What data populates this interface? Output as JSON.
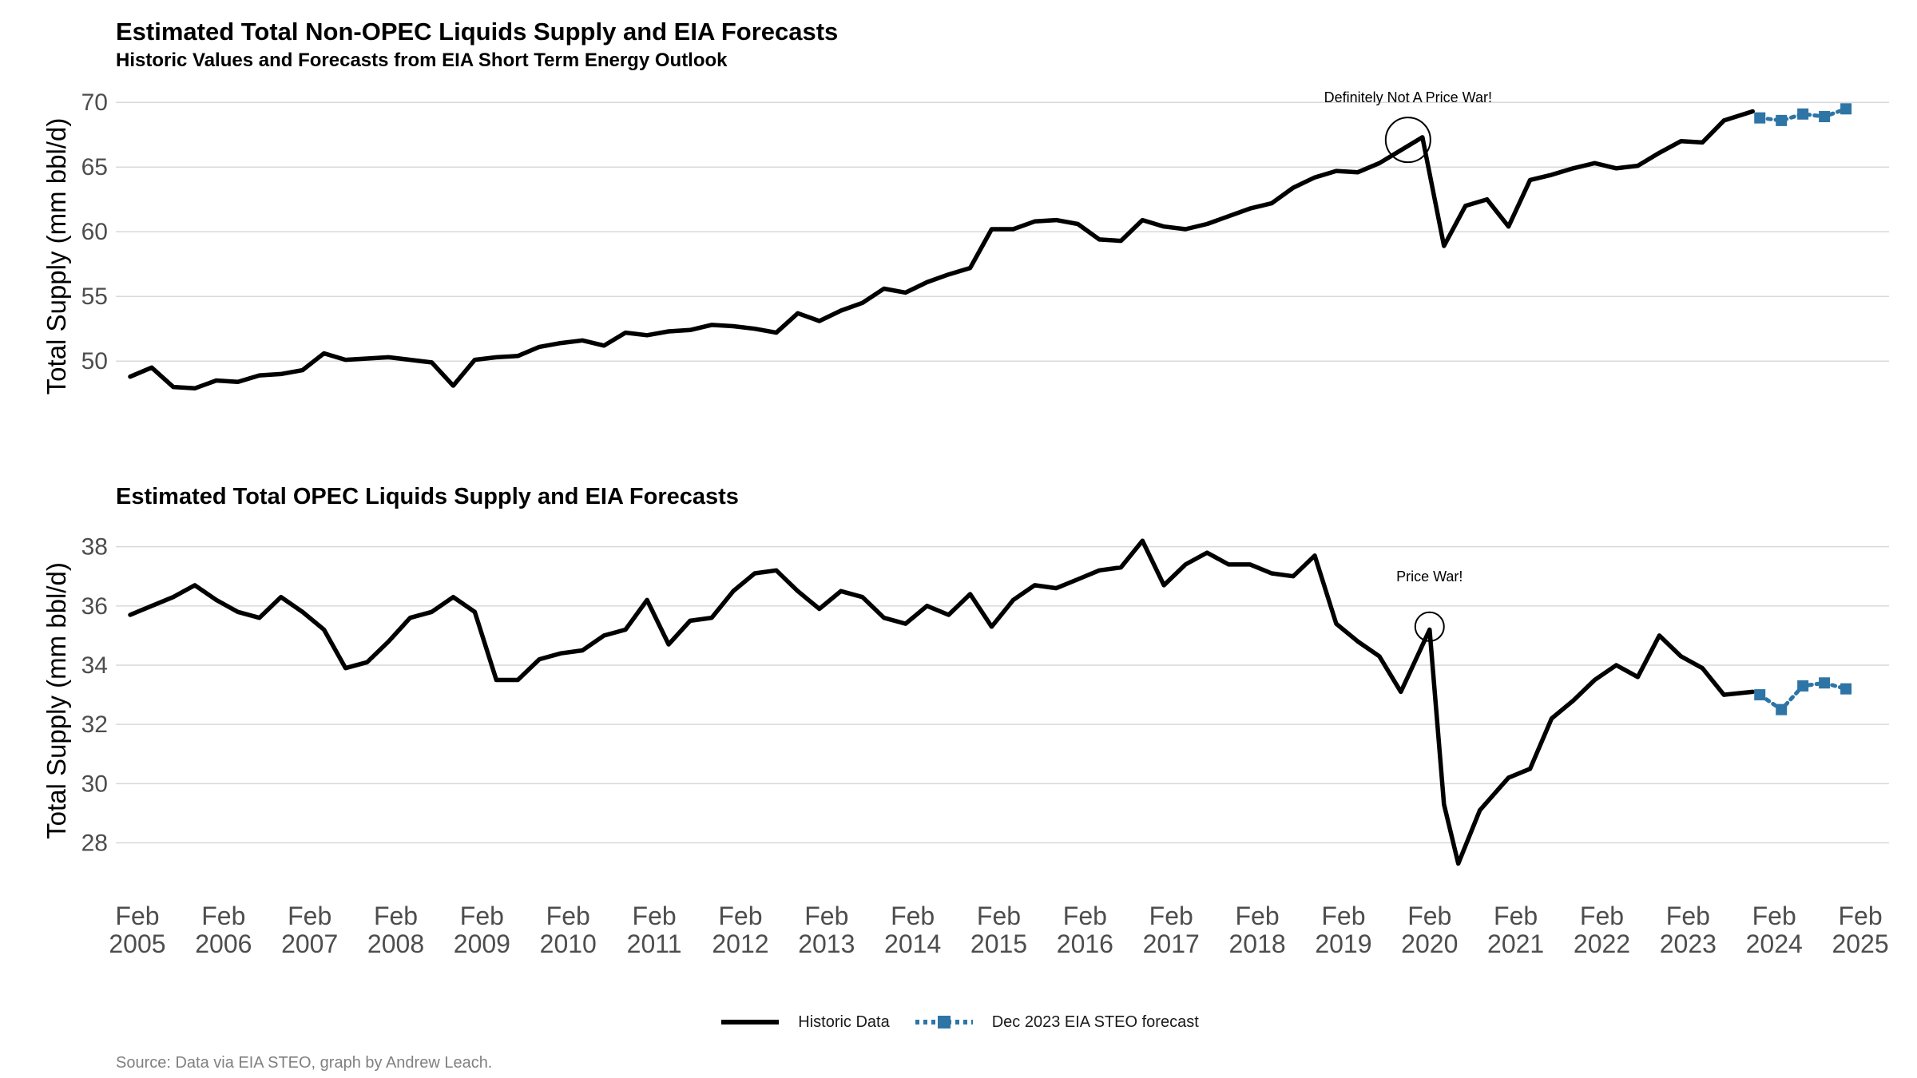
{
  "titles": {
    "top_title": "Estimated Total Non-OPEC Liquids Supply and EIA Forecasts",
    "top_subtitle": "Historic Values and Forecasts from EIA Short Term Energy Outlook",
    "bottom_title": "Estimated Total OPEC Liquids Supply and EIA Forecasts"
  },
  "legend": {
    "historic_label": "Historic Data",
    "forecast_label": "Dec 2023 EIA STEO forecast"
  },
  "caption": "Source: Data via EIA STEO, graph by Andrew Leach.",
  "colors": {
    "historic": "#000000",
    "forecast": "#2e75a6",
    "grid": "#d9d9d9"
  },
  "chart_data": [
    {
      "type": "line",
      "title": "Estimated Total Non-OPEC Liquids Supply and EIA Forecasts",
      "subtitle": "Historic Values and Forecasts from EIA Short Term Energy Outlook",
      "xlabel": "",
      "ylabel": "Total Supply (mm bbl/d)",
      "xlim": [
        "2004-11",
        "2025-06"
      ],
      "ylim": [
        45.2,
        71
      ],
      "yticks": [
        50,
        55,
        60,
        65,
        70
      ],
      "grid": true,
      "legend_position": "bottom",
      "annotation": {
        "text": "Definitely Not A Price War!",
        "x": "2019-11",
        "y": 67.1
      },
      "series": [
        {
          "name": "Historic Data",
          "style": "solid",
          "x": [
            "2005-01",
            "2005-04",
            "2005-07",
            "2005-10",
            "2006-01",
            "2006-04",
            "2006-07",
            "2006-10",
            "2007-01",
            "2007-04",
            "2007-07",
            "2007-10",
            "2008-01",
            "2008-04",
            "2008-07",
            "2008-10",
            "2009-01",
            "2009-04",
            "2009-07",
            "2009-10",
            "2010-01",
            "2010-04",
            "2010-07",
            "2010-10",
            "2011-01",
            "2011-04",
            "2011-07",
            "2011-10",
            "2012-01",
            "2012-04",
            "2012-07",
            "2012-10",
            "2013-01",
            "2013-04",
            "2013-07",
            "2013-10",
            "2014-01",
            "2014-04",
            "2014-07",
            "2014-10",
            "2015-01",
            "2015-04",
            "2015-07",
            "2015-10",
            "2016-01",
            "2016-04",
            "2016-07",
            "2016-10",
            "2017-01",
            "2017-04",
            "2017-07",
            "2017-10",
            "2018-01",
            "2018-04",
            "2018-07",
            "2018-10",
            "2019-01",
            "2019-04",
            "2019-07",
            "2019-10",
            "2020-01",
            "2020-04",
            "2020-07",
            "2020-10",
            "2021-01",
            "2021-04",
            "2021-07",
            "2021-10",
            "2022-01",
            "2022-04",
            "2022-07",
            "2022-10",
            "2023-01",
            "2023-04",
            "2023-07",
            "2023-11"
          ],
          "y": [
            48.8,
            49.5,
            48.0,
            47.9,
            48.5,
            48.4,
            48.9,
            49.0,
            49.3,
            50.6,
            50.1,
            50.2,
            50.3,
            50.1,
            49.9,
            48.1,
            50.1,
            50.3,
            50.4,
            51.1,
            51.4,
            51.6,
            51.2,
            52.2,
            52.0,
            52.3,
            52.4,
            52.8,
            52.7,
            52.5,
            52.2,
            53.7,
            53.1,
            53.9,
            54.5,
            55.6,
            55.3,
            56.1,
            56.7,
            57.2,
            60.2,
            60.2,
            60.8,
            60.9,
            60.6,
            59.4,
            59.3,
            60.9,
            60.4,
            60.2,
            60.6,
            61.2,
            61.8,
            62.2,
            63.4,
            64.2,
            64.7,
            64.6,
            65.3,
            66.3,
            67.3,
            58.9,
            62.0,
            62.5,
            60.4,
            64.0,
            64.4,
            64.9,
            65.3,
            64.9,
            65.1,
            66.1,
            67.0,
            66.9,
            68.6,
            69.3
          ]
        },
        {
          "name": "Dec 2023 EIA STEO forecast",
          "style": "dotted-squares",
          "x": [
            "2023-12",
            "2024-03",
            "2024-06",
            "2024-09",
            "2024-12"
          ],
          "y": [
            68.8,
            68.6,
            69.1,
            68.9,
            69.5
          ]
        }
      ]
    },
    {
      "type": "line",
      "title": "Estimated Total OPEC Liquids Supply and EIA Forecasts",
      "xlabel": "",
      "ylabel": "Total Supply (mm bbl/d)",
      "xlim": [
        "2004-11",
        "2025-06"
      ],
      "ylim": [
        26.8,
        38.8
      ],
      "yticks": [
        28,
        30,
        32,
        34,
        36,
        38
      ],
      "xticks": [
        "Feb 2005",
        "Feb 2006",
        "Feb 2007",
        "Feb 2008",
        "Feb 2009",
        "Feb 2010",
        "Feb 2011",
        "Feb 2012",
        "Feb 2013",
        "Feb 2014",
        "Feb 2015",
        "Feb 2016",
        "Feb 2017",
        "Feb 2018",
        "Feb 2019",
        "Feb 2020",
        "Feb 2021",
        "Feb 2022",
        "Feb 2023",
        "Feb 2024",
        "Feb 2025"
      ],
      "grid": true,
      "legend_position": "bottom",
      "annotation": {
        "text": "Price War!",
        "x": "2020-02",
        "y": 35.3
      },
      "series": [
        {
          "name": "Historic Data",
          "style": "solid",
          "x": [
            "2005-01",
            "2005-04",
            "2005-07",
            "2005-10",
            "2006-01",
            "2006-04",
            "2006-07",
            "2006-10",
            "2007-01",
            "2007-04",
            "2007-07",
            "2007-10",
            "2008-01",
            "2008-04",
            "2008-07",
            "2008-10",
            "2009-01",
            "2009-04",
            "2009-07",
            "2009-10",
            "2010-01",
            "2010-04",
            "2010-07",
            "2010-10",
            "2011-01",
            "2011-04",
            "2011-07",
            "2011-10",
            "2012-01",
            "2012-04",
            "2012-07",
            "2012-10",
            "2013-01",
            "2013-04",
            "2013-07",
            "2013-10",
            "2014-01",
            "2014-04",
            "2014-07",
            "2014-10",
            "2015-01",
            "2015-04",
            "2015-07",
            "2015-10",
            "2016-01",
            "2016-04",
            "2016-07",
            "2016-10",
            "2017-01",
            "2017-04",
            "2017-07",
            "2017-10",
            "2018-01",
            "2018-04",
            "2018-07",
            "2018-10",
            "2019-01",
            "2019-04",
            "2019-07",
            "2019-10",
            "2020-02",
            "2020-04",
            "2020-06",
            "2020-09",
            "2021-01",
            "2021-04",
            "2021-07",
            "2021-10",
            "2022-01",
            "2022-04",
            "2022-07",
            "2022-10",
            "2023-01",
            "2023-04",
            "2023-07",
            "2023-11"
          ],
          "y": [
            35.7,
            36.0,
            36.3,
            36.7,
            36.2,
            35.8,
            35.6,
            36.3,
            35.8,
            35.2,
            33.9,
            34.1,
            34.8,
            35.6,
            35.8,
            36.3,
            35.8,
            33.5,
            33.5,
            34.2,
            34.4,
            34.5,
            35.0,
            35.2,
            36.2,
            34.7,
            35.5,
            35.6,
            36.5,
            37.1,
            37.2,
            36.5,
            35.9,
            36.5,
            36.3,
            35.6,
            35.4,
            36.0,
            35.7,
            36.4,
            35.3,
            36.2,
            36.7,
            36.6,
            36.9,
            37.2,
            37.3,
            38.2,
            36.7,
            37.4,
            37.8,
            37.4,
            37.4,
            37.1,
            37.0,
            37.7,
            35.4,
            34.8,
            34.3,
            33.1,
            35.2,
            29.3,
            27.3,
            29.1,
            30.2,
            30.5,
            32.2,
            32.8,
            33.5,
            34.0,
            33.6,
            35.0,
            34.3,
            33.9,
            33.0,
            33.1
          ]
        },
        {
          "name": "Dec 2023 EIA STEO forecast",
          "style": "dotted-squares",
          "x": [
            "2023-12",
            "2024-03",
            "2024-06",
            "2024-09",
            "2024-12"
          ],
          "y": [
            33.0,
            32.5,
            33.3,
            33.4,
            33.2
          ]
        }
      ]
    }
  ]
}
